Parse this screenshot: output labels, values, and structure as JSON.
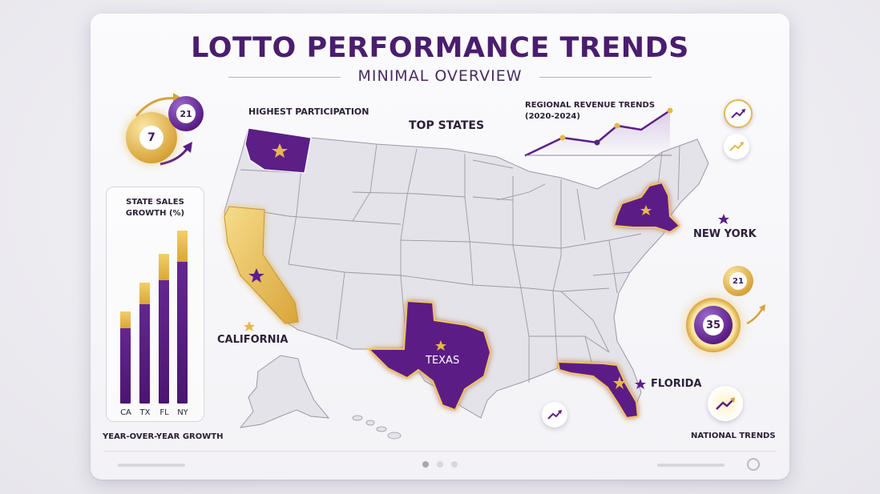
{
  "header": {
    "title": "LOTTO PERFORMANCE TRENDS",
    "subtitle": "MINIMAL OVERVIEW"
  },
  "map": {
    "highest_participation_label": "HIGHEST PARTICIPATION",
    "top_states_label": "TOP STATES",
    "highlighted_states": [
      {
        "name": "Washington",
        "label": ""
      },
      {
        "name": "California",
        "label": "CALIFORNIA"
      },
      {
        "name": "Texas",
        "label": "TEXAS"
      },
      {
        "name": "Florida",
        "label": "FLORIDA"
      },
      {
        "name": "New York",
        "label": "NEW YORK"
      }
    ],
    "colors": {
      "purple": "#5b1f86",
      "gold": "#e6b84a",
      "land": "#e4e3ea",
      "border": "#9c98a6"
    }
  },
  "revenue": {
    "title_line1": "REGIONAL REVENUE TRENDS",
    "title_line2": "(2020-2024)"
  },
  "sales_panel": {
    "title_line1": "STATE SALES",
    "title_line2": "GROWTH (%)",
    "footer": "YEAR-OVER-YEAR GROWTH"
  },
  "chart_data": {
    "type": "bar",
    "categories": [
      "CA",
      "TX",
      "FL",
      "NY"
    ],
    "values": [
      32,
      42,
      52,
      60
    ],
    "title": "STATE SALES GROWTH (%)",
    "xlabel": "YEAR-OVER-YEAR GROWTH",
    "ylabel": ""
  },
  "balls": {
    "ball_7": "7",
    "ball_21_top": "21",
    "ball_21_right": "21",
    "ball_35": "35"
  },
  "national_trends_label": "NATIONAL TRENDS",
  "icons": [
    "trend-up-icon",
    "trend-up-icon",
    "trend-up-icon",
    "trend-up-icon",
    "settings-icon",
    "star-icon"
  ]
}
